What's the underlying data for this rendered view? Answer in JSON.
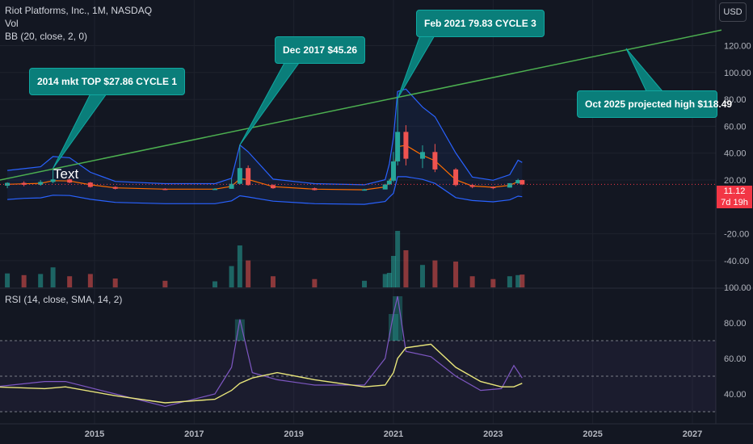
{
  "header": {
    "symbol_line": "Riot Platforms, Inc., 1M, NASDAQ",
    "vol_label": "Vol",
    "bb_label": "BB (20, close, 2, 0)",
    "currency_button": "USD"
  },
  "rsi_panel": {
    "label": "RSI (14, close, SMA, 14, 2)"
  },
  "last_price": {
    "value": "11.12",
    "countdown": "7d 19h"
  },
  "annotations": {
    "top_2014": "2014 mkt TOP $27.86 CYCLE 1",
    "top_2017": "Dec 2017 $45.26",
    "top_2021": "Feb 2021 79.83 CYCLE 3",
    "projection": "Oct 2025 projected high $118.49",
    "text_marker": "Text"
  },
  "colors": {
    "background": "#131722",
    "up": "#26a69a",
    "down": "#ef5350",
    "bb_band": "#2962ff",
    "bb_basis": "#ff6d00",
    "trendline": "#4caf50",
    "callout": "#0a7e7a",
    "rsi": "#7e57c2",
    "rsi_ma": "#e8e57a",
    "last_price": "#f23645"
  },
  "chart_data": [
    {
      "type": "candlestick",
      "title": "Riot Platforms, Inc., 1M, NASDAQ",
      "y_ticks": [
        "120.00",
        "100.00",
        "80.00",
        "60.00",
        "40.00",
        "20.00",
        "-20.00",
        "-40.00"
      ],
      "x_ticks": [
        "2015",
        "2017",
        "2019",
        "2021",
        "2023",
        "2025",
        "2027"
      ],
      "last_close": 11.12,
      "candles": [
        {
          "t": "2013-04",
          "o": 9.0,
          "h": 14.5,
          "l": 5.0,
          "c": 13.5
        },
        {
          "t": "2013-08",
          "o": 13.5,
          "h": 16.0,
          "l": 8.0,
          "c": 10.5
        },
        {
          "t": "2013-12",
          "o": 10.5,
          "h": 18.0,
          "l": 9.0,
          "c": 15.0
        },
        {
          "t": "2014-03",
          "o": 15.0,
          "h": 27.86,
          "l": 13.0,
          "c": 19.0
        },
        {
          "t": "2014-07",
          "o": 19.0,
          "h": 20.0,
          "l": 13.0,
          "c": 14.0
        },
        {
          "t": "2014-12",
          "o": 14.0,
          "h": 15.0,
          "l": 6.0,
          "c": 7.0
        },
        {
          "t": "2015-06",
          "o": 7.0,
          "h": 8.0,
          "l": 3.0,
          "c": 4.0
        },
        {
          "t": "2016-06",
          "o": 4.0,
          "h": 5.0,
          "l": 2.0,
          "c": 3.0
        },
        {
          "t": "2017-06",
          "o": 3.0,
          "h": 5.0,
          "l": 2.5,
          "c": 4.0
        },
        {
          "t": "2017-10",
          "o": 4.0,
          "h": 20.0,
          "l": 4.0,
          "c": 12.0
        },
        {
          "t": "2017-12",
          "o": 12.0,
          "h": 45.26,
          "l": 11.0,
          "c": 28.0
        },
        {
          "t": "2018-02",
          "o": 28.0,
          "h": 30.0,
          "l": 9.0,
          "c": 10.0
        },
        {
          "t": "2018-08",
          "o": 10.0,
          "h": 11.0,
          "l": 4.0,
          "c": 5.0
        },
        {
          "t": "2019-06",
          "o": 5.0,
          "h": 6.0,
          "l": 1.5,
          "c": 2.0
        },
        {
          "t": "2020-06",
          "o": 2.0,
          "h": 4.0,
          "l": 1.0,
          "c": 3.0
        },
        {
          "t": "2020-11",
          "o": 3.0,
          "h": 12.0,
          "l": 3.0,
          "c": 11.0
        },
        {
          "t": "2020-12",
          "o": 11.0,
          "h": 20.0,
          "l": 10.0,
          "c": 17.0
        },
        {
          "t": "2021-01",
          "o": 17.0,
          "h": 40.0,
          "l": 15.0,
          "c": 33.0
        },
        {
          "t": "2021-02",
          "o": 33.0,
          "h": 79.83,
          "l": 30.0,
          "c": 55.0
        },
        {
          "t": "2021-04",
          "o": 55.0,
          "h": 60.0,
          "l": 30.0,
          "c": 35.0
        },
        {
          "t": "2021-08",
          "o": 35.0,
          "h": 45.0,
          "l": 28.0,
          "c": 40.0
        },
        {
          "t": "2021-11",
          "o": 40.0,
          "h": 46.0,
          "l": 25.0,
          "c": 27.0
        },
        {
          "t": "2022-04",
          "o": 27.0,
          "h": 28.0,
          "l": 8.0,
          "c": 10.0
        },
        {
          "t": "2022-08",
          "o": 10.0,
          "h": 12.0,
          "l": 5.0,
          "c": 7.0
        },
        {
          "t": "2023-01",
          "o": 7.0,
          "h": 8.0,
          "l": 3.5,
          "c": 6.0
        },
        {
          "t": "2023-05",
          "o": 6.0,
          "h": 13.0,
          "l": 6.0,
          "c": 13.0
        },
        {
          "t": "2023-07",
          "o": 13.0,
          "h": 20.0,
          "l": 12.0,
          "c": 18.0
        },
        {
          "t": "2023-08",
          "o": 18.0,
          "h": 18.5,
          "l": 10.0,
          "c": 11.12
        }
      ],
      "trendline": {
        "start": {
          "t": "2012-12",
          "v": 15.0
        },
        "end": {
          "t": "2027-08",
          "v": 131.0
        }
      }
    },
    {
      "type": "line",
      "title": "RSI (14, close, SMA, 14, 2)",
      "y_ticks": [
        "100.00",
        "80.00",
        "60.00",
        "40.00"
      ],
      "bands": [
        70,
        50,
        30
      ],
      "x": [
        "2013-01",
        "2014-01",
        "2014-06",
        "2015-06",
        "2016-06",
        "2017-06",
        "2017-10",
        "2017-12",
        "2018-03",
        "2018-09",
        "2019-06",
        "2020-06",
        "2020-11",
        "2021-01",
        "2021-02",
        "2021-04",
        "2021-10",
        "2022-04",
        "2022-10",
        "2023-03",
        "2023-06",
        "2023-08"
      ],
      "series": [
        {
          "values": [
            44,
            47,
            47,
            40,
            33,
            40,
            55,
            82,
            52,
            48,
            45,
            45,
            60,
            85,
            95,
            64,
            61,
            50,
            42,
            43,
            56,
            49
          ]
        },
        {
          "values": [
            44,
            43,
            44,
            39,
            35,
            37,
            42,
            46,
            49,
            52,
            48,
            44,
            45,
            52,
            60,
            66,
            68,
            55,
            47,
            44,
            44,
            46
          ]
        }
      ]
    }
  ]
}
